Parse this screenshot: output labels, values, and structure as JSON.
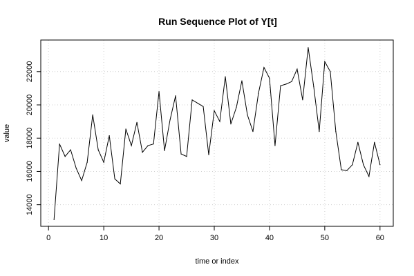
{
  "chart_data": {
    "type": "line",
    "title": "Run Sequence Plot of Y[t]",
    "xlabel": "time or index",
    "ylabel": "value",
    "xlim": [
      -1.4,
      62.4
    ],
    "ylim": [
      12700,
      23900
    ],
    "x_ticks": [
      0,
      10,
      20,
      30,
      40,
      50,
      60
    ],
    "y_ticks": [
      14000,
      16000,
      18000,
      20000,
      22000
    ],
    "x_tick_labels": [
      "0",
      "10",
      "20",
      "30",
      "40",
      "50",
      "60"
    ],
    "y_tick_labels": [
      "14000",
      "16000",
      "18000",
      "20000",
      "22000"
    ],
    "grid": true,
    "series": [
      {
        "x": [
          1,
          2,
          3,
          4,
          5,
          6,
          7,
          8,
          9,
          10,
          11,
          12,
          13,
          14,
          15,
          16,
          17,
          18,
          19,
          20,
          21,
          22,
          23,
          24,
          25,
          26,
          27,
          28,
          29,
          30,
          31,
          32,
          33,
          34,
          35,
          36,
          37,
          38,
          39,
          40,
          41,
          42,
          43,
          44,
          45,
          46,
          47,
          48,
          49,
          50,
          51,
          52,
          53,
          54,
          55,
          56,
          57,
          58,
          59,
          60
        ],
        "values": [
          13100,
          17650,
          16900,
          17300,
          16200,
          15450,
          16550,
          19400,
          17300,
          16550,
          18150,
          15550,
          15250,
          18550,
          17550,
          18950,
          17150,
          17550,
          17650,
          20800,
          17250,
          19100,
          20550,
          17050,
          16900,
          20300,
          20100,
          19900,
          17000,
          19650,
          19000,
          21700,
          18850,
          19850,
          21450,
          19400,
          18400,
          20700,
          22250,
          21600,
          17550,
          21150,
          21250,
          21400,
          22150,
          20300,
          23450,
          21100,
          18400,
          22600,
          22000,
          18400,
          16100,
          16050,
          16400,
          17750,
          16400,
          15700,
          17750,
          16400
        ]
      }
    ]
  }
}
